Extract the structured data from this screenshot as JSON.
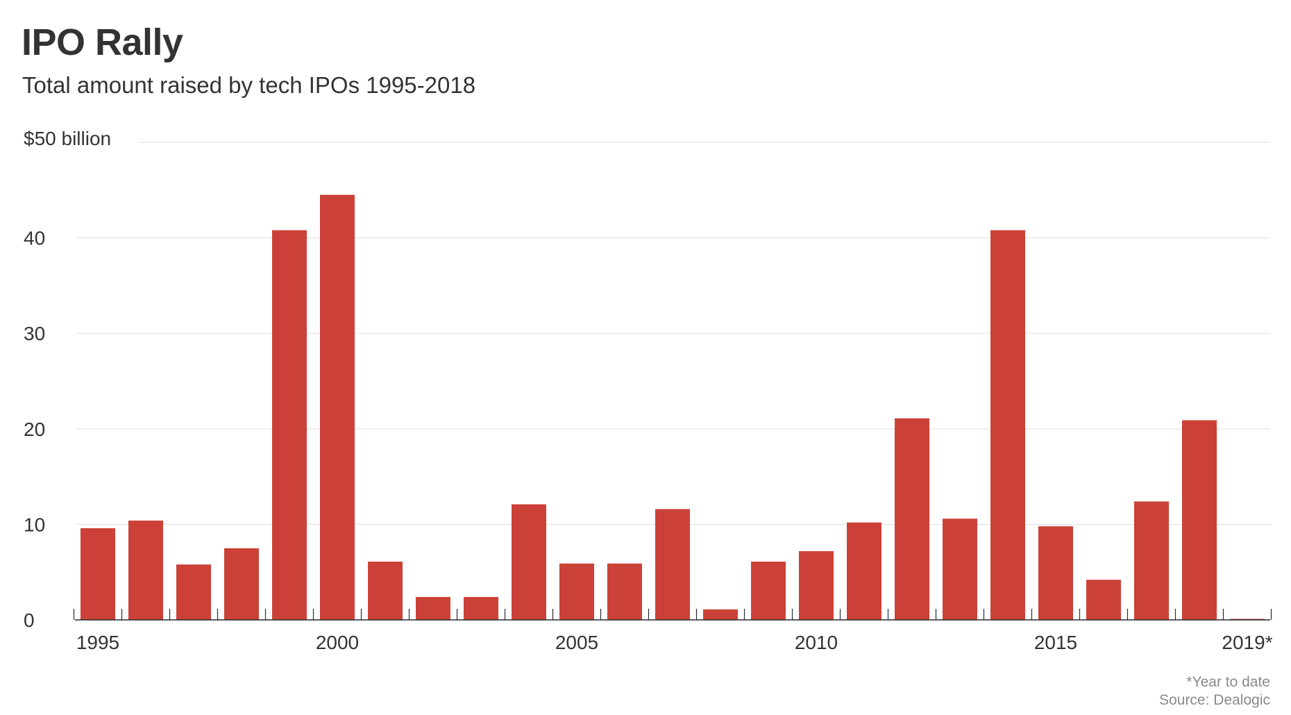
{
  "chart_data": {
    "type": "bar",
    "title": "IPO Rally",
    "subtitle": "Total amount raised by tech IPOs 1995-2018",
    "ylabel": "",
    "xlabel": "",
    "ylim": [
      0,
      50
    ],
    "y_ticks": [
      {
        "value": 0,
        "label": "0"
      },
      {
        "value": 10,
        "label": "10"
      },
      {
        "value": 20,
        "label": "20"
      },
      {
        "value": 30,
        "label": "30"
      },
      {
        "value": 40,
        "label": "40"
      },
      {
        "value": 50,
        "label": "$50 billion"
      }
    ],
    "categories": [
      "1995",
      "1996",
      "1997",
      "1998",
      "1999",
      "2000",
      "2001",
      "2002",
      "2003",
      "2004",
      "2005",
      "2006",
      "2007",
      "2008",
      "2009",
      "2010",
      "2011",
      "2012",
      "2013",
      "2014",
      "2015",
      "2016",
      "2017",
      "2018",
      "2019*"
    ],
    "x_tick_labels": [
      {
        "category": "1995",
        "label": "1995"
      },
      {
        "category": "2000",
        "label": "2000"
      },
      {
        "category": "2005",
        "label": "2005"
      },
      {
        "category": "2010",
        "label": "2010"
      },
      {
        "category": "2015",
        "label": "2015"
      },
      {
        "category": "2019*",
        "label": "2019*"
      }
    ],
    "series": [
      {
        "name": "Amount raised",
        "values": [
          9.6,
          10.4,
          5.8,
          7.5,
          40.8,
          44.5,
          6.1,
          2.4,
          2.4,
          12.1,
          5.9,
          5.9,
          11.6,
          1.1,
          6.1,
          7.2,
          10.2,
          21.1,
          10.6,
          40.8,
          9.8,
          4.2,
          12.4,
          20.9,
          0.1
        ]
      }
    ],
    "grid": true,
    "colors": {
      "bar": "#cc4137",
      "grid": "#e3e3e3",
      "axis": "#262a33",
      "text": "#333333"
    }
  },
  "footer": {
    "note": "*Year to date",
    "source": "Source: Dealogic"
  }
}
